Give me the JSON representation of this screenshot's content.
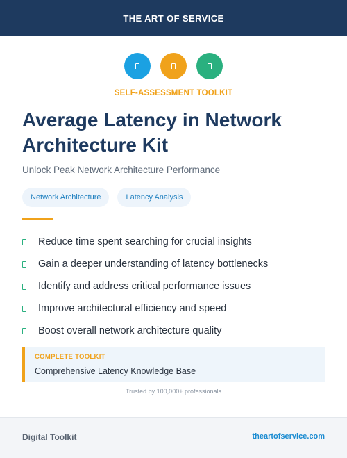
{
  "header": {
    "brand": "THE ART OF SERVICE"
  },
  "icons": [
    {
      "name": "document-icon",
      "color": "#1ba1e2"
    },
    {
      "name": "document-icon",
      "color": "#f0a21b"
    },
    {
      "name": "document-icon",
      "color": "#2ab07f"
    }
  ],
  "colors": {
    "navy": "#1e3a5f",
    "accent": "#f0a21b",
    "check": "#2ab07f",
    "link": "#1a8bd1"
  },
  "kicker": "SELF-ASSESSMENT TOOLKIT",
  "title": "Average Latency in Network Architecture Kit",
  "subtitle": "Unlock Peak Network Architecture Performance",
  "tags": [
    "Network Architecture",
    "Latency Analysis"
  ],
  "benefits": [
    "Reduce time spent searching for crucial insights",
    "Gain a deeper understanding of latency bottlenecks",
    "Identify and address critical performance issues",
    "Improve architectural efficiency and speed",
    "Boost overall network architecture quality"
  ],
  "toolkit": {
    "label": "COMPLETE TOOLKIT",
    "value": "Comprehensive Latency Knowledge Base"
  },
  "trusted": "Trusted by 100,000+ professionals",
  "footer": {
    "left": "Digital Toolkit",
    "right": "theartofservice.com"
  }
}
